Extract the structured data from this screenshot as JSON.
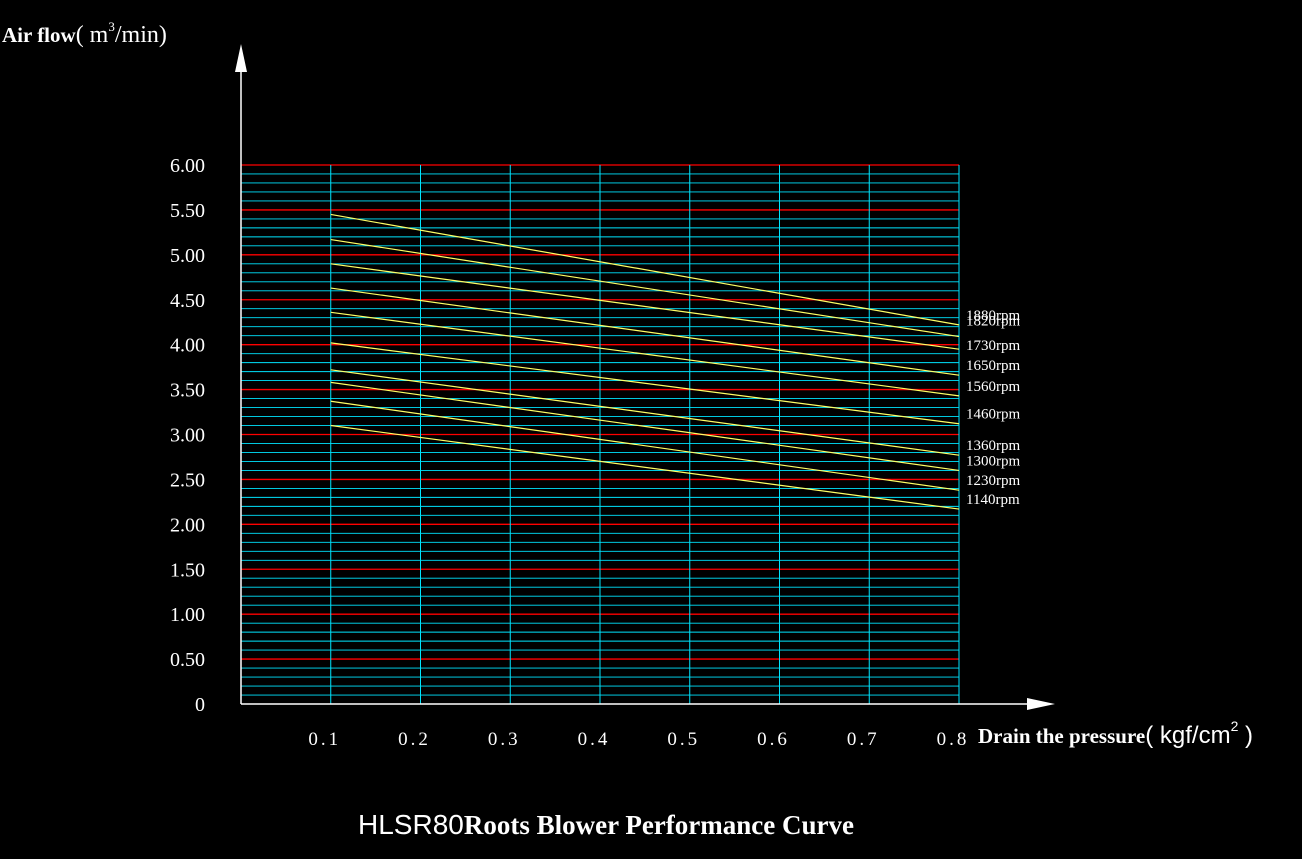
{
  "chart_data": {
    "type": "line",
    "title_prefix": "HLSR80",
    "title_main": "Roots Blower Performance Curve",
    "ylabel_main": "Air flow",
    "ylabel_unit_open": "( m",
    "ylabel_unit_sup": "3",
    "ylabel_unit_close": "/min)",
    "xlabel_main": "Drain the pressure",
    "xlabel_unit_open": "( kgf/cm",
    "xlabel_unit_sup": "2",
    "xlabel_unit_close": " )",
    "xlim": [
      0,
      0.8
    ],
    "ylim": [
      0,
      6.0
    ],
    "x_ticks": [
      0.1,
      0.2,
      0.3,
      0.4,
      0.5,
      0.6,
      0.7,
      0.8
    ],
    "x_tick_labels": [
      "0.1",
      "0.2",
      "0.3",
      "0.4",
      "0.5",
      "0.6",
      "0.7",
      "0.8"
    ],
    "y_ticks": [
      0,
      0.5,
      1.0,
      1.5,
      2.0,
      2.5,
      3.0,
      3.5,
      4.0,
      4.5,
      5.0,
      5.5,
      6.0
    ],
    "y_tick_labels": [
      "0",
      "0.50",
      "1.00",
      "1.50",
      "2.00",
      "2.50",
      "3.00",
      "3.50",
      "4.00",
      "4.50",
      "5.00",
      "5.50",
      "6.00"
    ],
    "grid": true,
    "minor_grid_step": 0.1,
    "colors": {
      "background": "#000000",
      "major_grid": "#ff0000",
      "minor_grid": "#00e5ff",
      "curve": "#ffff66",
      "axis": "#ffffff",
      "text": "#ffffff"
    },
    "series": [
      {
        "name": "1880rpm",
        "x": [
          0.1,
          0.8
        ],
        "y": [
          5.45,
          4.22
        ]
      },
      {
        "name": "1820rpm",
        "x": [
          0.1,
          0.8
        ],
        "y": [
          5.17,
          4.09
        ]
      },
      {
        "name": "1730rpm",
        "x": [
          0.1,
          0.8
        ],
        "y": [
          4.9,
          3.95
        ]
      },
      {
        "name": "1650rpm",
        "x": [
          0.1,
          0.8
        ],
        "y": [
          4.63,
          3.66
        ]
      },
      {
        "name": "1560rpm",
        "x": [
          0.1,
          0.8
        ],
        "y": [
          4.36,
          3.43
        ]
      },
      {
        "name": "1460rpm",
        "x": [
          0.1,
          0.8
        ],
        "y": [
          4.02,
          3.12
        ]
      },
      {
        "name": "1360rpm",
        "x": [
          0.1,
          0.8
        ],
        "y": [
          3.72,
          2.77
        ]
      },
      {
        "name": "1300rpm",
        "x": [
          0.1,
          0.8
        ],
        "y": [
          3.58,
          2.6
        ]
      },
      {
        "name": "1230rpm",
        "x": [
          0.1,
          0.8
        ],
        "y": [
          3.37,
          2.38
        ]
      },
      {
        "name": "1140rpm",
        "x": [
          0.1,
          0.8
        ],
        "y": [
          3.1,
          2.17
        ]
      }
    ]
  }
}
